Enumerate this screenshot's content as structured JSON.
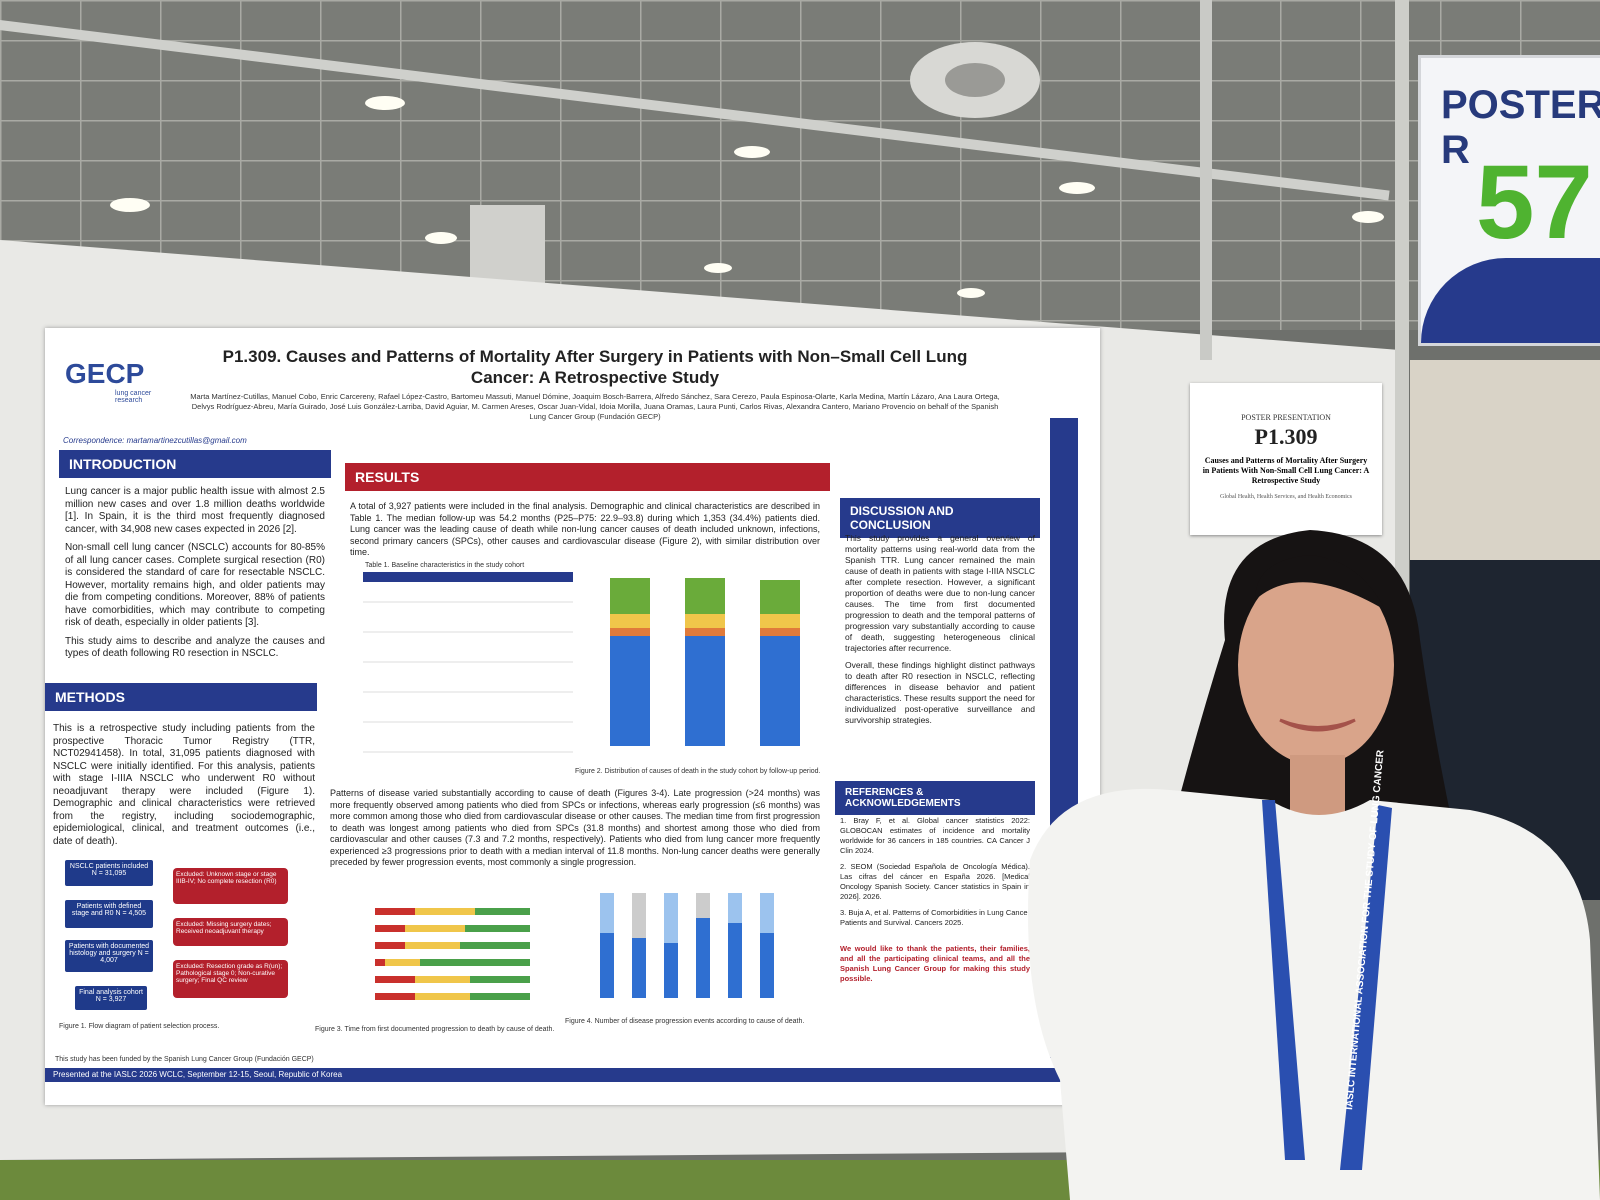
{
  "sign": {
    "title": "POSTER R",
    "number": "57"
  },
  "card": {
    "label": "POSTER PRESENTATION",
    "code": "P1.309",
    "title": "Causes and Patterns of Mortality After Surgery in Patients With Non-Small Cell Lung Cancer: A Retrospective Study",
    "track": "Global Health, Health Services, and Health Economics"
  },
  "poster": {
    "logo": "GECP",
    "logo_sub": "lung cancer research",
    "title": "P1.309. Causes and Patterns of Mortality After Surgery in Patients with Non–Small Cell Lung Cancer: A Retrospective Study",
    "authors": "Marta Martínez-Cutillas, Manuel Cobo, Enric Carcereny, Rafael López-Castro, Bartomeu Massuti, Manuel Dómine, Joaquim Bosch-Barrera, Alfredo Sánchez, Sara Cerezo, Paula Espinosa-Olarte, Karla Medina, Martín Lázaro, Ana Laura Ortega, Delvys Rodríguez-Abreu, María Guirado, José Luis González-Larriba, David Aguiar, M. Carmen Areses, Oscar Juan-Vidal, Idoia Morilla, Juana Oramas, Laura Punti, Carlos Rivas, Alexandra Cantero, Mariano Provencio on behalf of the Spanish Lung Cancer Group (Fundación GECP)",
    "correspondence": "Correspondence: martamartinezcutillas@gmail.com",
    "introduction": {
      "heading": "INTRODUCTION",
      "paragraphs": [
        "Lung cancer is a major public health issue with almost 2.5 million new cases and over 1.8 million deaths worldwide [1]. In Spain, it is the third most frequently diagnosed cancer, with 34,908 new cases expected in 2026 [2].",
        "Non-small cell lung cancer (NSCLC) accounts for 80-85% of all lung cancer cases. Complete surgical resection (R0) is considered the standard of care for resectable NSCLC. However, mortality remains high, and older patients may die from competing conditions. Moreover, 88% of patients have comorbidities, which may contribute to competing risk of death, especially in older patients [3].",
        "This study aims to describe and analyze the causes and types of death following R0 resection in NSCLC."
      ]
    },
    "methods": {
      "heading": "METHODS",
      "paragraphs": [
        "This is a retrospective study including patients from the prospective Thoracic Tumor Registry (TTR, NCT02941458). In total, 31,095 patients diagnosed with NSCLC were initially identified. For this analysis, patients with stage I-IIIA NSCLC who underwent R0 without neoadjuvant therapy were included (Figure 1). Demographic and clinical characteristics were retrieved from the registry, including sociodemographic, epidemiological, clinical, and treatment outcomes (i.e., date of death)."
      ],
      "flow": [
        "NSCLC patients included N = 31,095",
        "Patients with defined stage and R0 N = 4,505",
        "Patients with documented histology and surgery N = 4,007",
        "Final analysis cohort N = 3,927"
      ],
      "excluded": [
        "Excluded: Unknown stage or stage IIIB-IV; No complete resection (R0)",
        "Excluded: Missing surgery dates; Received neoadjuvant therapy",
        "Excluded: Resection grade as R(un); Pathological stage 0; Non-curative surgery; Final QC review"
      ],
      "figure_caption": "Figure 1. Flow diagram of patient selection process."
    },
    "results": {
      "heading": "RESULTS",
      "paragraphs": [
        "A total of 3,927 patients were included in the final analysis. Demographic and clinical characteristics are described in Table 1. The median follow-up was 54.2 months (P25–P75: 22.9–93.8) during which 1,353 (34.4%) patients died. Lung cancer was the leading cause of death while non-lung cancer causes of death included unknown, infections, second primary cancers (SPCs), other causes and cardiovascular disease (Figure 2), with similar distribution over time.",
        "Patterns of disease varied substantially according to cause of death (Figures 3-4). Late progression (>24 months) was more frequently observed among patients who died from SPCs or infections, whereas early progression (≤6 months) was more common among those who died from cardiovascular disease or other causes. The median time from first progression to death was longest among patients who died from SPCs (31.8 months) and shortest among those who died from cardiovascular and other causes (7.3 and 7.2 months, respectively). Patients who died from lung cancer more frequently experienced ≥3 progressions prior to death with a median interval of 11.8 months. Non-lung cancer deaths were generally preceded by fewer progression events, most commonly a single progression."
      ],
      "table_caption": "Table 1. Baseline characteristics in the study cohort",
      "fig2_caption": "Figure 2. Distribution of causes of death in the study cohort by follow-up period.",
      "fig3_caption": "Figure 3. Time from first documented progression to death by cause of death.",
      "fig4_caption": "Figure 4. Number of disease progression events according to cause of death."
    },
    "discussion": {
      "heading": "DISCUSSION AND CONCLUSION",
      "paragraphs": [
        "This study provides a general overview of mortality patterns using real-world data from the Spanish TTR. Lung cancer remained the main cause of death in patients with stage I-IIIA NSCLC after complete resection. However, a significant proportion of deaths were due to non-lung cancer causes. The time from first documented progression to death and the temporal patterns of progression vary substantially according to cause of death, suggesting heterogeneous clinical trajectories after recurrence.",
        "Overall, these findings highlight distinct pathways to death after R0 resection in NSCLC, reflecting differences in disease behavior and patient characteristics. These results support the need for individualized post-operative surveillance and survivorship strategies."
      ]
    },
    "references": {
      "heading": "REFERENCES & ACKNOWLEDGEMENTS",
      "items": [
        "1. Bray F, et al. Global cancer statistics 2022: GLOBOCAN estimates of incidence and mortality worldwide for 36 cancers in 185 countries. CA Cancer J Clin 2024.",
        "2. SEOM (Sociedad Española de Oncología Médica). Las cifras del cáncer en España 2026. [Medical Oncology Spanish Society. Cancer statistics in Spain in 2026]. 2026.",
        "3. Buja A, et al. Patterns of Comorbidities in Lung Cancer Patients and Survival. Cancers 2025."
      ],
      "acknowledgement": "We would like to thank the patients, their families, and all the participating clinical teams, and all the Spanish Lung Cancer Group for making this study possible."
    },
    "footer": {
      "funding": "This study has been funded by the Spanish Lung Cancer Group (Fundación GECP)",
      "presented": "Presented at the IASLC 2026 WCLC, September 12-15, Seoul, Republic of Korea"
    }
  },
  "lanyard": "IASLC INTERNATIONAL ASSOCIATION FOR THE STUDY OF LUNG CANCER"
}
